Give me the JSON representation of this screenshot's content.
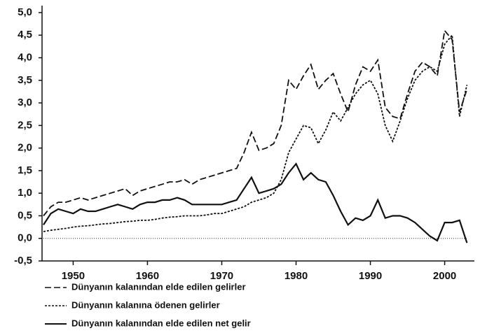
{
  "chart_data": {
    "type": "line",
    "x": [
      1946,
      1947,
      1948,
      1949,
      1950,
      1951,
      1952,
      1953,
      1954,
      1955,
      1956,
      1957,
      1958,
      1959,
      1960,
      1961,
      1962,
      1963,
      1964,
      1965,
      1966,
      1967,
      1968,
      1969,
      1970,
      1971,
      1972,
      1973,
      1974,
      1975,
      1976,
      1977,
      1978,
      1979,
      1980,
      1981,
      1982,
      1983,
      1984,
      1985,
      1986,
      1987,
      1988,
      1989,
      1990,
      1991,
      1992,
      1993,
      1994,
      1995,
      1996,
      1997,
      1998,
      1999,
      2000,
      2001,
      2002,
      2003
    ],
    "series": [
      {
        "name": "Dünyanın kalanından elde edilen gelirler",
        "color": "#111111",
        "dash": "long",
        "values": [
          0.5,
          0.7,
          0.8,
          0.8,
          0.85,
          0.9,
          0.85,
          0.9,
          0.95,
          1.0,
          1.05,
          1.1,
          0.95,
          1.05,
          1.1,
          1.15,
          1.2,
          1.25,
          1.25,
          1.3,
          1.2,
          1.3,
          1.35,
          1.4,
          1.45,
          1.5,
          1.55,
          1.9,
          2.35,
          1.95,
          2.0,
          2.1,
          2.5,
          3.5,
          3.3,
          3.6,
          3.85,
          3.3,
          3.5,
          3.65,
          3.2,
          2.8,
          3.4,
          3.8,
          3.7,
          3.95,
          2.9,
          2.7,
          2.65,
          3.2,
          3.7,
          3.9,
          3.8,
          3.6,
          4.6,
          4.4,
          2.8,
          3.3
        ]
      },
      {
        "name": "Dünyanın kalanına ödenen gelirler",
        "color": "#111111",
        "dash": "short",
        "values": [
          0.15,
          0.18,
          0.2,
          0.22,
          0.25,
          0.27,
          0.28,
          0.3,
          0.32,
          0.33,
          0.35,
          0.37,
          0.38,
          0.4,
          0.4,
          0.42,
          0.45,
          0.47,
          0.48,
          0.5,
          0.5,
          0.5,
          0.52,
          0.55,
          0.55,
          0.6,
          0.65,
          0.7,
          0.8,
          0.85,
          0.9,
          1.0,
          1.3,
          1.9,
          2.2,
          2.5,
          2.45,
          2.1,
          2.4,
          2.8,
          2.6,
          2.9,
          3.2,
          3.4,
          3.5,
          3.2,
          2.5,
          2.15,
          2.6,
          3.1,
          3.5,
          3.7,
          3.8,
          3.7,
          4.3,
          4.5,
          2.7,
          3.4
        ]
      },
      {
        "name": "Dünyanın kalanından elde edilen net gelir",
        "color": "#111111",
        "dash": "solid",
        "values": [
          0.3,
          0.55,
          0.65,
          0.6,
          0.55,
          0.65,
          0.6,
          0.6,
          0.65,
          0.7,
          0.75,
          0.7,
          0.65,
          0.75,
          0.8,
          0.8,
          0.85,
          0.85,
          0.9,
          0.85,
          0.75,
          0.75,
          0.75,
          0.75,
          0.75,
          0.8,
          0.85,
          1.1,
          1.35,
          1.0,
          1.05,
          1.1,
          1.2,
          1.45,
          1.65,
          1.3,
          1.45,
          1.3,
          1.25,
          0.95,
          0.6,
          0.3,
          0.45,
          0.4,
          0.5,
          0.85,
          0.45,
          0.5,
          0.5,
          0.45,
          0.35,
          0.2,
          0.05,
          -0.05,
          0.35,
          0.35,
          0.4,
          -0.1
        ]
      }
    ],
    "hline": 0,
    "xlim": [
      1946,
      2004
    ],
    "xticks": [
      1950,
      1960,
      1970,
      1980,
      1990,
      2000
    ],
    "ylim": [
      -0.5,
      5.0
    ],
    "yticks": [
      {
        "value": -0.5,
        "label": "-0,5"
      },
      {
        "value": 0.0,
        "label": "0,0"
      },
      {
        "value": 0.5,
        "label": "0,5"
      },
      {
        "value": 1.0,
        "label": "1,0"
      },
      {
        "value": 1.5,
        "label": "1,5"
      },
      {
        "value": 2.0,
        "label": "2,0"
      },
      {
        "value": 2.5,
        "label": "2,5"
      },
      {
        "value": 3.0,
        "label": "3,0"
      },
      {
        "value": 3.5,
        "label": "3,5"
      },
      {
        "value": 4.0,
        "label": "4,0"
      },
      {
        "value": 4.5,
        "label": "4,5"
      },
      {
        "value": 5.0,
        "label": "5,0"
      }
    ],
    "legend": "bottom-left"
  }
}
